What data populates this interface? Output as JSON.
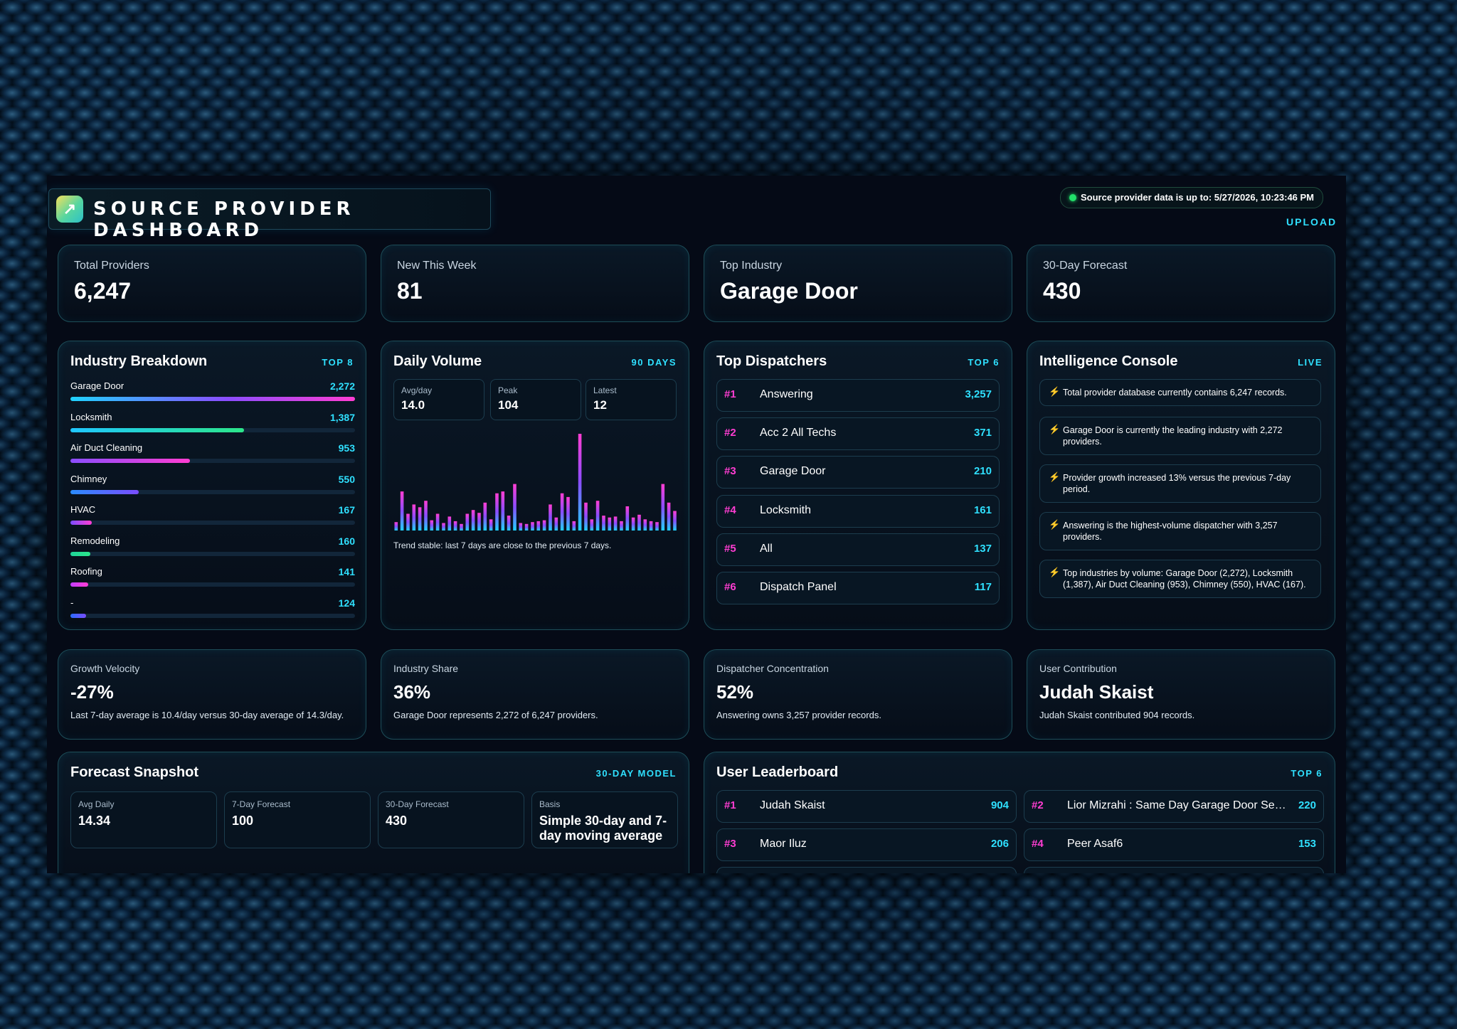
{
  "header": {
    "title": "SOURCE PROVIDER DASHBOARD",
    "logo_icon": "trend-arrow-icon",
    "status_text": "Source provider data is up to: 5/27/2026, 10:23:46 PM",
    "upload_label": "UPLOAD"
  },
  "stats": [
    {
      "label": "Total Providers",
      "value": "6,247"
    },
    {
      "label": "New This Week",
      "value": "81"
    },
    {
      "label": "Top Industry",
      "value": "Garage Door"
    },
    {
      "label": "30-Day Forecast",
      "value": "430"
    }
  ],
  "industry": {
    "title": "Industry Breakdown",
    "tag": "TOP 8",
    "items": [
      {
        "name": "Garage Door",
        "value": "2,272",
        "fraction": 1.0,
        "color": "linear-gradient(90deg,#1fd3ff,#8a4dff 55%,#ff3dd2)"
      },
      {
        "name": "Locksmith",
        "value": "1,387",
        "fraction": 0.61,
        "color": "linear-gradient(90deg,#1fc6ff,#2ce68a)"
      },
      {
        "name": "Air Duct Cleaning",
        "value": "953",
        "fraction": 0.42,
        "color": "linear-gradient(90deg,#8a4dff,#ff3dd2)"
      },
      {
        "name": "Chimney",
        "value": "550",
        "fraction": 0.24,
        "color": "linear-gradient(90deg,#2a8cff,#7a4dff)"
      },
      {
        "name": "HVAC",
        "value": "167",
        "fraction": 0.074,
        "color": "linear-gradient(90deg,#7a4dff,#ff3dd2)"
      },
      {
        "name": "Remodeling",
        "value": "160",
        "fraction": 0.07,
        "color": "linear-gradient(90deg,#1fd39a,#2ce68a)"
      },
      {
        "name": "Roofing",
        "value": "141",
        "fraction": 0.062,
        "color": "linear-gradient(90deg,#c23dff,#ff3dd2)"
      },
      {
        "name": "-",
        "value": "124",
        "fraction": 0.055,
        "color": "linear-gradient(90deg,#2a6cff,#7a4dff)"
      }
    ]
  },
  "daily": {
    "title": "Daily Volume",
    "tag": "90 DAYS",
    "mini": [
      {
        "label": "Avg/day",
        "value": "14.0"
      },
      {
        "label": "Peak",
        "value": "104"
      },
      {
        "label": "Latest",
        "value": "12"
      }
    ],
    "trend_text": "Trend stable: last 7 days are close to the previous 7 days.",
    "bars": [
      9,
      42,
      18,
      28,
      25,
      32,
      11,
      18,
      8,
      15,
      10,
      7,
      18,
      22,
      19,
      30,
      12,
      40,
      42,
      16,
      50,
      8,
      7,
      9,
      10,
      11,
      28,
      14,
      40,
      36,
      10,
      104,
      30,
      12,
      32,
      16,
      14,
      15,
      10,
      26,
      14,
      17,
      12,
      10,
      9,
      50,
      30,
      21
    ]
  },
  "dispatchers": {
    "title": "Top Dispatchers",
    "tag": "TOP 6",
    "items": [
      {
        "rank": "#1",
        "name": "Answering",
        "value": "3,257"
      },
      {
        "rank": "#2",
        "name": "Acc 2 All Techs",
        "value": "371"
      },
      {
        "rank": "#3",
        "name": "Garage Door",
        "value": "210"
      },
      {
        "rank": "#4",
        "name": "Locksmith",
        "value": "161"
      },
      {
        "rank": "#5",
        "name": "All",
        "value": "137"
      },
      {
        "rank": "#6",
        "name": "Dispatch Panel",
        "value": "117"
      }
    ]
  },
  "intel": {
    "title": "Intelligence Console",
    "tag": "LIVE",
    "icon": "lightning-icon",
    "items": [
      "Total provider database currently contains 6,247 records.",
      "Garage Door is currently the leading industry with 2,272 providers.",
      "Provider growth increased 13% versus the previous 7-day period.",
      "Answering is the highest-volume dispatcher with 3,257 providers.",
      "Top industries by volume: Garage Door (2,272), Locksmith (1,387), Air Duct Cleaning (953), Chimney (550), HVAC (167)."
    ]
  },
  "metrics": [
    {
      "label": "Growth Velocity",
      "value": "-27%",
      "desc": "Last 7-day average is 10.4/day versus 30-day average of 14.3/day."
    },
    {
      "label": "Industry Share",
      "value": "36%",
      "desc": "Garage Door represents 2,272 of 6,247 providers."
    },
    {
      "label": "Dispatcher Concentration",
      "value": "52%",
      "desc": "Answering owns 3,257 provider records."
    },
    {
      "label": "User Contribution",
      "value": "Judah Skaist",
      "desc": "Judah Skaist contributed 904 records."
    }
  ],
  "forecast": {
    "title": "Forecast Snapshot",
    "tag": "30-DAY MODEL",
    "boxes": [
      {
        "label": "Avg Daily",
        "value": "14.34"
      },
      {
        "label": "7-Day Forecast",
        "value": "100"
      },
      {
        "label": "30-Day Forecast",
        "value": "430"
      },
      {
        "label": "Basis",
        "value": "Simple 30-day and 7-day moving average"
      }
    ]
  },
  "leaderboard": {
    "title": "User Leaderboard",
    "tag": "TOP 6",
    "items": [
      {
        "rank": "#1",
        "name": "Judah Skaist",
        "value": "904"
      },
      {
        "rank": "#2",
        "name": "Lior Mizrahi : Same Day Garage Door Services",
        "value": "220"
      },
      {
        "rank": "#3",
        "name": "Maor Iluz",
        "value": "206"
      },
      {
        "rank": "#4",
        "name": "Peer Asaf6",
        "value": "153"
      }
    ]
  }
}
